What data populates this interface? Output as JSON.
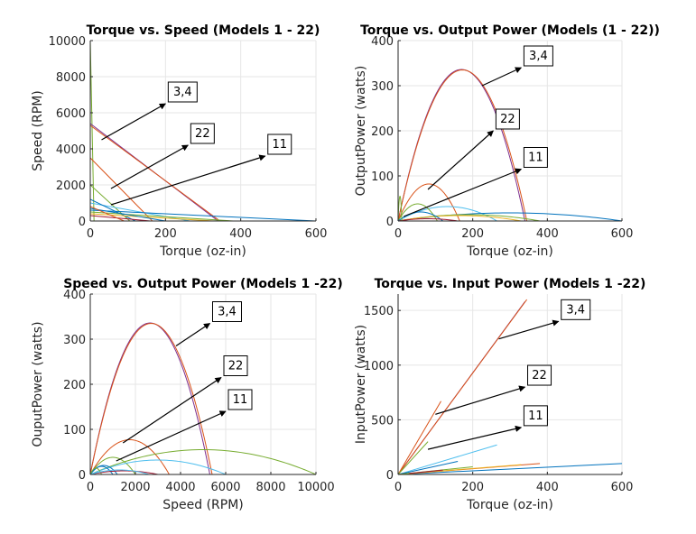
{
  "chart_data": [
    {
      "type": "line",
      "title": "Torque vs. Speed (Models 1 - 22)",
      "xlabel": "Torque (oz-in)",
      "ylabel": "Speed (RPM)",
      "xlim": [
        0,
        600
      ],
      "ylim": [
        0,
        10000
      ],
      "xticks": [
        "0",
        "200",
        "400",
        "600"
      ],
      "yticks": [
        "0",
        "2000",
        "4000",
        "6000",
        "8000",
        "10000"
      ],
      "grid": true,
      "series": [
        {
          "points": [
            [
              0,
              10000
            ],
            [
              10,
              0
            ]
          ],
          "color": "#77ac30"
        },
        {
          "points": [
            [
              0,
              5400
            ],
            [
              340,
              0
            ]
          ],
          "color": "#7e2f8e"
        },
        {
          "points": [
            [
              0,
              5300
            ],
            [
              345,
              0
            ]
          ],
          "color": "#d95319"
        },
        {
          "points": [
            [
              0,
              3500
            ],
            [
              165,
              0
            ]
          ],
          "color": "#d95319"
        },
        {
          "points": [
            [
              0,
              2000
            ],
            [
              105,
              0
            ]
          ],
          "color": "#77ac30"
        },
        {
          "points": [
            [
              0,
              1000
            ],
            [
              265,
              0
            ]
          ],
          "color": "#4dbeee"
        },
        {
          "points": [
            [
              0,
              1200
            ],
            [
              120,
              0
            ]
          ],
          "color": "#0072bd"
        },
        {
          "points": [
            [
              0,
              600
            ],
            [
              600,
              0
            ]
          ],
          "color": "#0072bd"
        },
        {
          "points": [
            [
              0,
              500
            ],
            [
              380,
              0
            ]
          ],
          "color": "#77ac30"
        },
        {
          "points": [
            [
              0,
              400
            ],
            [
              330,
              0
            ]
          ],
          "color": "#edb120"
        },
        {
          "points": [
            [
              0,
              300
            ],
            [
              160,
              0
            ]
          ],
          "color": "#a2142f"
        },
        {
          "points": [
            [
              0,
              700
            ],
            [
              200,
              0
            ]
          ],
          "color": "#0072bd"
        },
        {
          "points": [
            [
              0,
              800
            ],
            [
              90,
              0
            ]
          ],
          "color": "#d95319"
        }
      ],
      "annotations": [
        {
          "text": "3,4",
          "from": [
            30,
            4500
          ],
          "to": [
            200,
            6500
          ]
        },
        {
          "text": "22",
          "from": [
            55,
            1800
          ],
          "to": [
            260,
            4200
          ]
        },
        {
          "text": "11",
          "from": [
            55,
            900
          ],
          "to": [
            465,
            3600
          ]
        }
      ]
    },
    {
      "type": "line",
      "title": "Torque vs. Output Power (Models (1 - 22))",
      "xlabel": "Torque (oz-in)",
      "ylabel": "OutputPower (watts)",
      "xlim": [
        0,
        600
      ],
      "ylim": [
        0,
        400
      ],
      "xticks": [
        "0",
        "200",
        "400",
        "600"
      ],
      "yticks": [
        "0",
        "100",
        "200",
        "300",
        "400"
      ],
      "grid": true,
      "series": [
        {
          "peak": [
            170,
            336
          ],
          "zeros": [
            0,
            340
          ],
          "color": "#7e2f8e"
        },
        {
          "peak": [
            172,
            335
          ],
          "zeros": [
            0,
            345
          ],
          "color": "#d95319"
        },
        {
          "peak": [
            62,
            77
          ],
          "zeros": [
            0,
            165
          ],
          "color": "#d95319"
        },
        {
          "peak": [
            135,
            32
          ],
          "zeros": [
            0,
            265
          ],
          "color": "#4dbeee"
        },
        {
          "peak": [
            300,
            18
          ],
          "zeros": [
            0,
            600
          ],
          "color": "#0072bd"
        },
        {
          "peak": [
            190,
            14
          ],
          "zeros": [
            0,
            380
          ],
          "color": "#77ac30"
        },
        {
          "peak": [
            165,
            12
          ],
          "zeros": [
            0,
            330
          ],
          "color": "#edb120"
        },
        {
          "peak": [
            52,
            38
          ],
          "zeros": [
            0,
            105
          ],
          "color": "#77ac30"
        },
        {
          "peak": [
            60,
            20
          ],
          "zeros": [
            0,
            120
          ],
          "color": "#0072bd"
        },
        {
          "peak": [
            80,
            5
          ],
          "zeros": [
            0,
            160
          ],
          "color": "#a2142f"
        },
        {
          "peak": [
            5,
            55
          ],
          "zeros": [
            0,
            10
          ],
          "color": "#77ac30"
        }
      ],
      "annotations": [
        {
          "text": "3,4",
          "from": [
            225,
            300
          ],
          "to": [
            330,
            340
          ]
        },
        {
          "text": "22",
          "from": [
            80,
            70
          ],
          "to": [
            255,
            200
          ]
        },
        {
          "text": "11",
          "from": [
            15,
            10
          ],
          "to": [
            330,
            115
          ]
        }
      ]
    },
    {
      "type": "line",
      "title": "Speed vs. Output Power (Models 1 -22)",
      "xlabel": "Speed (RPM)",
      "ylabel": "OuputPower (watts)",
      "xlim": [
        0,
        10000
      ],
      "ylim": [
        0,
        400
      ],
      "xticks": [
        "0",
        "2000",
        "4000",
        "6000",
        "8000",
        "10000"
      ],
      "yticks": [
        "0",
        "100",
        "200",
        "300",
        "400"
      ],
      "grid": true,
      "series": [
        {
          "peak": [
            2650,
            336
          ],
          "zeros": [
            0,
            5300
          ],
          "color": "#7e2f8e"
        },
        {
          "peak": [
            2700,
            335
          ],
          "zeros": [
            0,
            5400
          ],
          "color": "#d95319"
        },
        {
          "peak": [
            1750,
            77
          ],
          "zeros": [
            0,
            3500
          ],
          "color": "#d95319"
        },
        {
          "peak": [
            5000,
            55
          ],
          "zeros": [
            0,
            10000
          ],
          "color": "#77ac30"
        },
        {
          "peak": [
            1000,
            38
          ],
          "zeros": [
            0,
            2000
          ],
          "color": "#77ac30"
        },
        {
          "peak": [
            3000,
            32
          ],
          "zeros": [
            0,
            6000
          ],
          "color": "#4dbeee"
        },
        {
          "peak": [
            500,
            18
          ],
          "zeros": [
            0,
            1000
          ],
          "color": "#0072bd"
        },
        {
          "peak": [
            600,
            20
          ],
          "zeros": [
            0,
            1200
          ],
          "color": "#0072bd"
        },
        {
          "peak": [
            250,
            14
          ],
          "zeros": [
            0,
            500
          ],
          "color": "#77ac30"
        },
        {
          "peak": [
            1500,
            8
          ],
          "zeros": [
            0,
            3000
          ],
          "color": "#a2142f"
        },
        {
          "peak": [
            1300,
            10
          ],
          "zeros": [
            0,
            2600
          ],
          "color": "#4dbeee"
        }
      ],
      "annotations": [
        {
          "text": "3,4",
          "from": [
            3800,
            285
          ],
          "to": [
            5300,
            335
          ]
        },
        {
          "text": "22",
          "from": [
            1450,
            70
          ],
          "to": [
            5800,
            215
          ]
        },
        {
          "text": "11",
          "from": [
            1150,
            30
          ],
          "to": [
            6000,
            140
          ]
        }
      ]
    },
    {
      "type": "line",
      "title": "Torque vs. Input Power (Models 1 -22)",
      "xlabel": "Torque (oz-in)",
      "ylabel": "InputPower (watts)",
      "xlim": [
        0,
        600
      ],
      "ylim": [
        0,
        1650
      ],
      "xticks": [
        "0",
        "200",
        "400",
        "600"
      ],
      "yticks": [
        "0",
        "500",
        "1000",
        "1500"
      ],
      "grid": true,
      "series": [
        {
          "points": [
            [
              0,
              0
            ],
            [
              340,
              1580
            ]
          ],
          "color": "#7e2f8e"
        },
        {
          "points": [
            [
              0,
              0
            ],
            [
              345,
              1600
            ]
          ],
          "color": "#d95319"
        },
        {
          "points": [
            [
              0,
              0
            ],
            [
              115,
              670
            ]
          ],
          "color": "#d95319"
        },
        {
          "points": [
            [
              0,
              0
            ],
            [
              80,
              300
            ]
          ],
          "color": "#77ac30"
        },
        {
          "points": [
            [
              0,
              0
            ],
            [
              265,
              270
            ]
          ],
          "color": "#4dbeee"
        },
        {
          "points": [
            [
              0,
              0
            ],
            [
              600,
              100
            ]
          ],
          "color": "#0072bd"
        },
        {
          "points": [
            [
              0,
              0
            ],
            [
              380,
              100
            ]
          ],
          "color": "#d95319"
        },
        {
          "points": [
            [
              0,
              0
            ],
            [
              330,
              90
            ]
          ],
          "color": "#edb120"
        },
        {
          "points": [
            [
              0,
              0
            ],
            [
              160,
              120
            ]
          ],
          "color": "#0072bd"
        },
        {
          "points": [
            [
              0,
              0
            ],
            [
              200,
              70
            ]
          ],
          "color": "#77ac30"
        },
        {
          "points": [
            [
              0,
              0
            ],
            [
              120,
              40
            ]
          ],
          "color": "#a2142f"
        },
        {
          "points": [
            [
              0,
              0
            ],
            [
              30,
              10
            ]
          ],
          "color": "#77ac30"
        }
      ],
      "annotations": [
        {
          "text": "3,4",
          "from": [
            270,
            1240
          ],
          "to": [
            430,
            1400
          ]
        },
        {
          "text": "22",
          "from": [
            100,
            550
          ],
          "to": [
            340,
            800
          ]
        },
        {
          "text": "11",
          "from": [
            80,
            230
          ],
          "to": [
            330,
            430
          ]
        }
      ]
    }
  ]
}
